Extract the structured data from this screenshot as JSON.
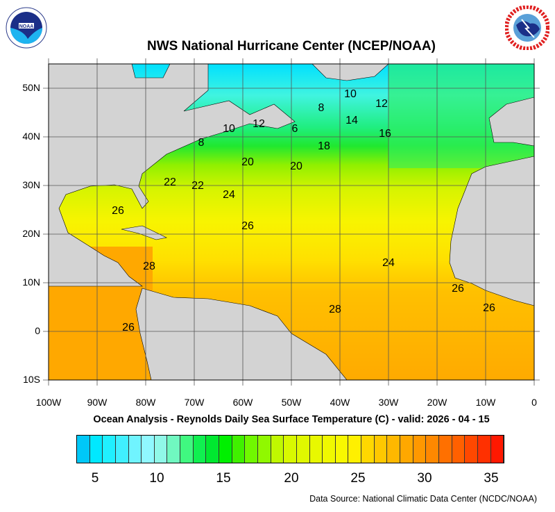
{
  "header": {
    "title": "NWS National Hurricane Center (NCEP/NOAA)",
    "left_logo": "NOAA",
    "right_logo": "NATIONAL WEATHER SERVICE"
  },
  "map": {
    "type": "sea surface temperature contour map",
    "lon_range": [
      "100W",
      "0"
    ],
    "lat_range": [
      "10S",
      "55N"
    ],
    "lon_ticks": [
      "100W",
      "90W",
      "80W",
      "70W",
      "60W",
      "50W",
      "40W",
      "30W",
      "20W",
      "10W",
      "0"
    ],
    "lat_ticks": [
      "50N",
      "40N",
      "30N",
      "20N",
      "10N",
      "0",
      "10S"
    ],
    "contour_labels": [
      "10",
      "12",
      "8",
      "14",
      "16",
      "10",
      "12",
      "6",
      "8",
      "18",
      "20",
      "20",
      "22",
      "22",
      "24",
      "26",
      "26",
      "24",
      "28",
      "28",
      "26",
      "26",
      "26"
    ],
    "land_color": "#d3d3d3"
  },
  "subtitle": "Ocean Analysis - Reynolds Daily Sea Surface Temperature (C) - valid: 2026 - 04 - 15",
  "colorbar": {
    "labels": [
      "5",
      "10",
      "15",
      "20",
      "25",
      "30",
      "35"
    ],
    "colors": [
      "#00c8f8",
      "#00e8ff",
      "#20f0ff",
      "#40f0ff",
      "#70f4ff",
      "#90f8ff",
      "#90f8e8",
      "#70f8c0",
      "#40f880",
      "#10f050",
      "#00e830",
      "#00f000",
      "#40f000",
      "#70f800",
      "#90f800",
      "#c0f800",
      "#d8f800",
      "#e0f800",
      "#e8f800",
      "#f0f800",
      "#f8f800",
      "#fff000",
      "#ffd800",
      "#ffc800",
      "#ffb800",
      "#ffa800",
      "#ff9800",
      "#ff8800",
      "#ff7000",
      "#ff6000",
      "#ff4800",
      "#ff3000",
      "#ff1800"
    ]
  },
  "footer": {
    "source": "Data Source: National Climatic Data Center (NCDC/NOAA)"
  }
}
